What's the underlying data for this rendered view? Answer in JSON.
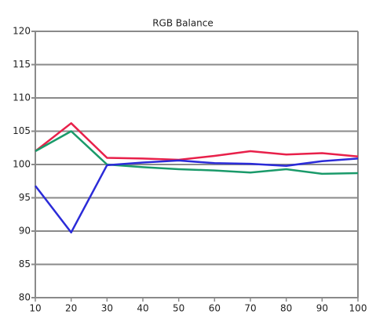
{
  "chart_data": {
    "type": "line",
    "title": "RGB Balance",
    "x": [
      10,
      20,
      30,
      40,
      50,
      60,
      70,
      80,
      90,
      100
    ],
    "series": [
      {
        "name": "Red",
        "color": "#e8204a",
        "values": [
          102,
          106.2,
          101,
          100.9,
          100.7,
          101.3,
          102,
          101.5,
          101.7,
          101.2
        ]
      },
      {
        "name": "Green",
        "color": "#1a9a6a",
        "values": [
          102,
          105,
          100,
          99.6,
          99.3,
          99.1,
          98.8,
          99.3,
          98.6,
          98.7
        ]
      },
      {
        "name": "Blue",
        "color": "#2b2bd8",
        "values": [
          96.8,
          89.8,
          99.9,
          100.3,
          100.6,
          100.2,
          100.1,
          99.8,
          100.5,
          100.9
        ]
      }
    ],
    "xlim": [
      10,
      100
    ],
    "xticks": [
      10,
      20,
      30,
      40,
      50,
      60,
      70,
      80,
      90,
      100
    ],
    "ylim": [
      80,
      120
    ],
    "yticks": [
      80,
      85,
      90,
      95,
      100,
      105,
      110,
      115,
      120
    ],
    "grid": true
  }
}
